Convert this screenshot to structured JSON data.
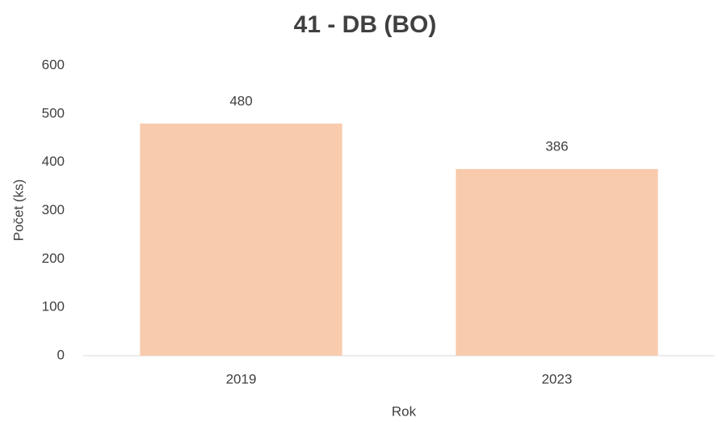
{
  "chart_data": {
    "type": "bar",
    "title": "41 - DB (BO)",
    "x_label": "Rok",
    "y_label": "Počet (ks)",
    "categories": [
      "2019",
      "2023"
    ],
    "values": [
      480,
      386
    ],
    "color": "#f8cbad",
    "ylim": [
      0,
      600
    ],
    "yticks": [
      0,
      100,
      200,
      300,
      400,
      500,
      600
    ],
    "grid": false
  }
}
